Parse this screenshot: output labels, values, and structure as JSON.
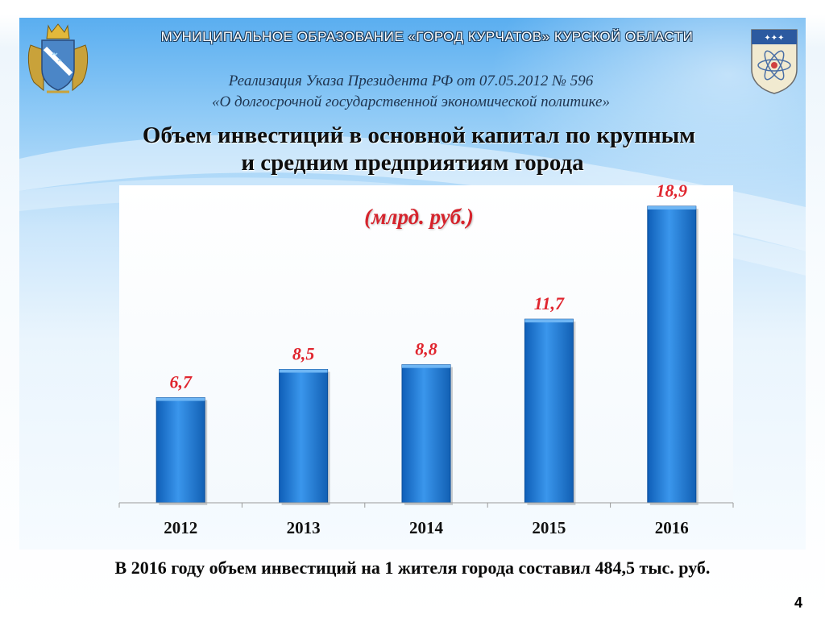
{
  "header": {
    "banner": "МУНИЦИПАЛЬНОЕ  ОБРАЗОВАНИЕ  «ГОРОД КУРЧАТОВ»  КУРСКОЙ  ОБЛАСТИ",
    "decree_line1": "Реализация Указа Президента РФ от 07.05.2012 № 596",
    "decree_line2": "«О долгосрочной государственной экономической политике»",
    "title_line1": "Объем инвестиций в основной капитал по крупным",
    "title_line2": "и средним предприятиям города"
  },
  "emblems": {
    "left": "kursk-oblast-coat-of-arms-icon",
    "right": "kurchatov-city-coat-of-arms-icon"
  },
  "chart_data": {
    "type": "bar",
    "categories": [
      "2012",
      "2013",
      "2014",
      "2015",
      "2016"
    ],
    "values": [
      6.7,
      8.5,
      8.8,
      11.7,
      18.9
    ],
    "value_labels": [
      "6,7",
      "8,5",
      "8,8",
      "11,7",
      "18,9"
    ],
    "units_label": "(млрд. руб.)",
    "ylim": [
      0,
      20
    ],
    "grid": false,
    "bar_color": "#1f78d6",
    "label_color": "#e0262f"
  },
  "footnote": "В 2016 году объем инвестиций на 1 жителя города составил 484,5 тыс. руб.",
  "page_number": "4"
}
